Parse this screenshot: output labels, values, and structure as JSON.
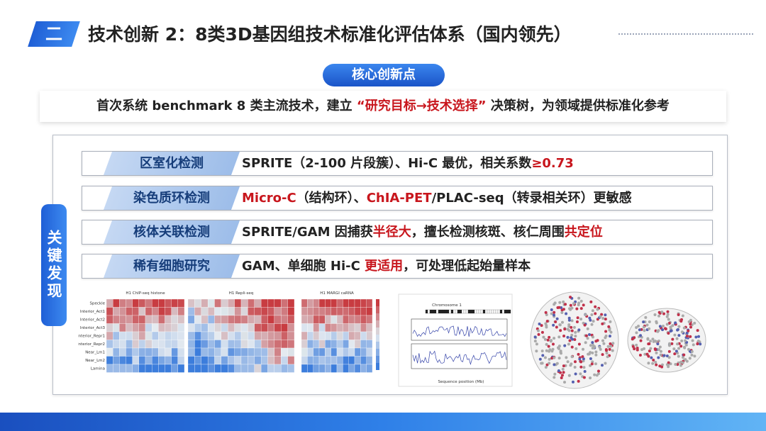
{
  "header": {
    "number": "二",
    "title": "技术创新 2：8类3D基因组技术标准化评估体系（国内领先）"
  },
  "badge": "核心创新点",
  "summary": [
    {
      "text": "首次系统 benchmark 8 类主流技术，建立 ",
      "highlight": false
    },
    {
      "text": "“研究目标→技术选择”",
      "highlight": true
    },
    {
      "text": " 决策树，为领域提供标准化参考",
      "highlight": false
    }
  ],
  "findings": {
    "label": "关键发现",
    "rows": [
      {
        "label": "区室化检测",
        "segments": [
          {
            "text": "SPRITE（2-100 片段簇）、Hi-C 最优，相关系数",
            "highlight": false
          },
          {
            "text": "≥0.73",
            "highlight": true
          }
        ]
      },
      {
        "label": "染色质环检测",
        "segments": [
          {
            "text": "Micro-C",
            "highlight": true
          },
          {
            "text": "（结构环）、",
            "highlight": false
          },
          {
            "text": "ChIA-PET",
            "highlight": true
          },
          {
            "text": "/PLAC-seq（转录相关环）更敏感",
            "highlight": false
          }
        ]
      },
      {
        "label": "核体关联检测",
        "segments": [
          {
            "text": "SPRITE/GAM 因捕获",
            "highlight": false
          },
          {
            "text": "半径大",
            "highlight": true
          },
          {
            "text": "，擅长检测核斑、核仁周围",
            "highlight": false
          },
          {
            "text": "共定位",
            "highlight": true
          }
        ]
      },
      {
        "label": "稀有细胞研究",
        "segments": [
          {
            "text": "GAM、单细胞 Hi-C ",
            "highlight": false
          },
          {
            "text": "更适用",
            "highlight": true
          },
          {
            "text": "，可处理低起始量样本",
            "highlight": false
          }
        ]
      }
    ]
  },
  "figure": {
    "heatmap_titles": [
      "H1 ChIP-seq histone",
      "H1 Repli-seq",
      "H1 MARGI caRNA"
    ],
    "row_labels": [
      "Speckle",
      "Interior_Act1",
      "Interior_Act2",
      "Interior_Act3",
      "Interior_Repr1",
      "Interior_Repr2",
      "Near_Lm1",
      "Near_Lm2",
      "Lamina"
    ],
    "track_title": "Chromosome 1",
    "track_xlabel": "Sequence position (Mb)"
  }
}
